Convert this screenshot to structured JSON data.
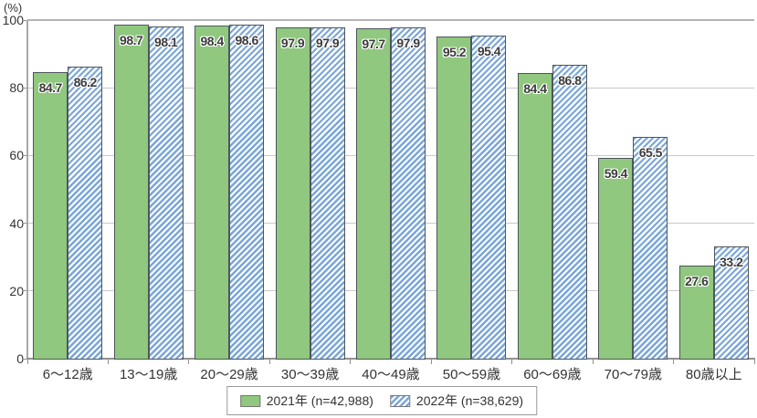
{
  "chart_data": {
    "type": "bar",
    "title": "",
    "xlabel": "",
    "ylabel": "(%)",
    "ylim": [
      0,
      100
    ],
    "yticks": [
      0,
      20,
      40,
      60,
      80,
      100
    ],
    "grid": true,
    "legend_position": "bottom",
    "categories": [
      "6～12歳",
      "13～19歳",
      "20～29歳",
      "30～39歳",
      "40～49歳",
      "50～59歳",
      "60～69歳",
      "70～79歳",
      "80歳以上"
    ],
    "series": [
      {
        "name": "2021年  (n=42,988)",
        "pattern": "solid",
        "color": "#8fc87e",
        "values": [
          84.7,
          98.7,
          98.4,
          97.9,
          97.7,
          95.2,
          84.4,
          59.4,
          27.6
        ]
      },
      {
        "name": "2022年  (n=38,629)",
        "pattern": "diagonal-hatch",
        "color": "#7aa6da",
        "values": [
          86.2,
          98.1,
          98.6,
          97.9,
          97.9,
          95.4,
          86.8,
          65.5,
          33.2
        ]
      }
    ],
    "bar_value_labels_shown": true
  },
  "colors": {
    "bar_border": "#4f555b",
    "gridline": "#c9c9c9",
    "axis": "#919191",
    "text": "#333333",
    "legend_border": "#999999"
  }
}
